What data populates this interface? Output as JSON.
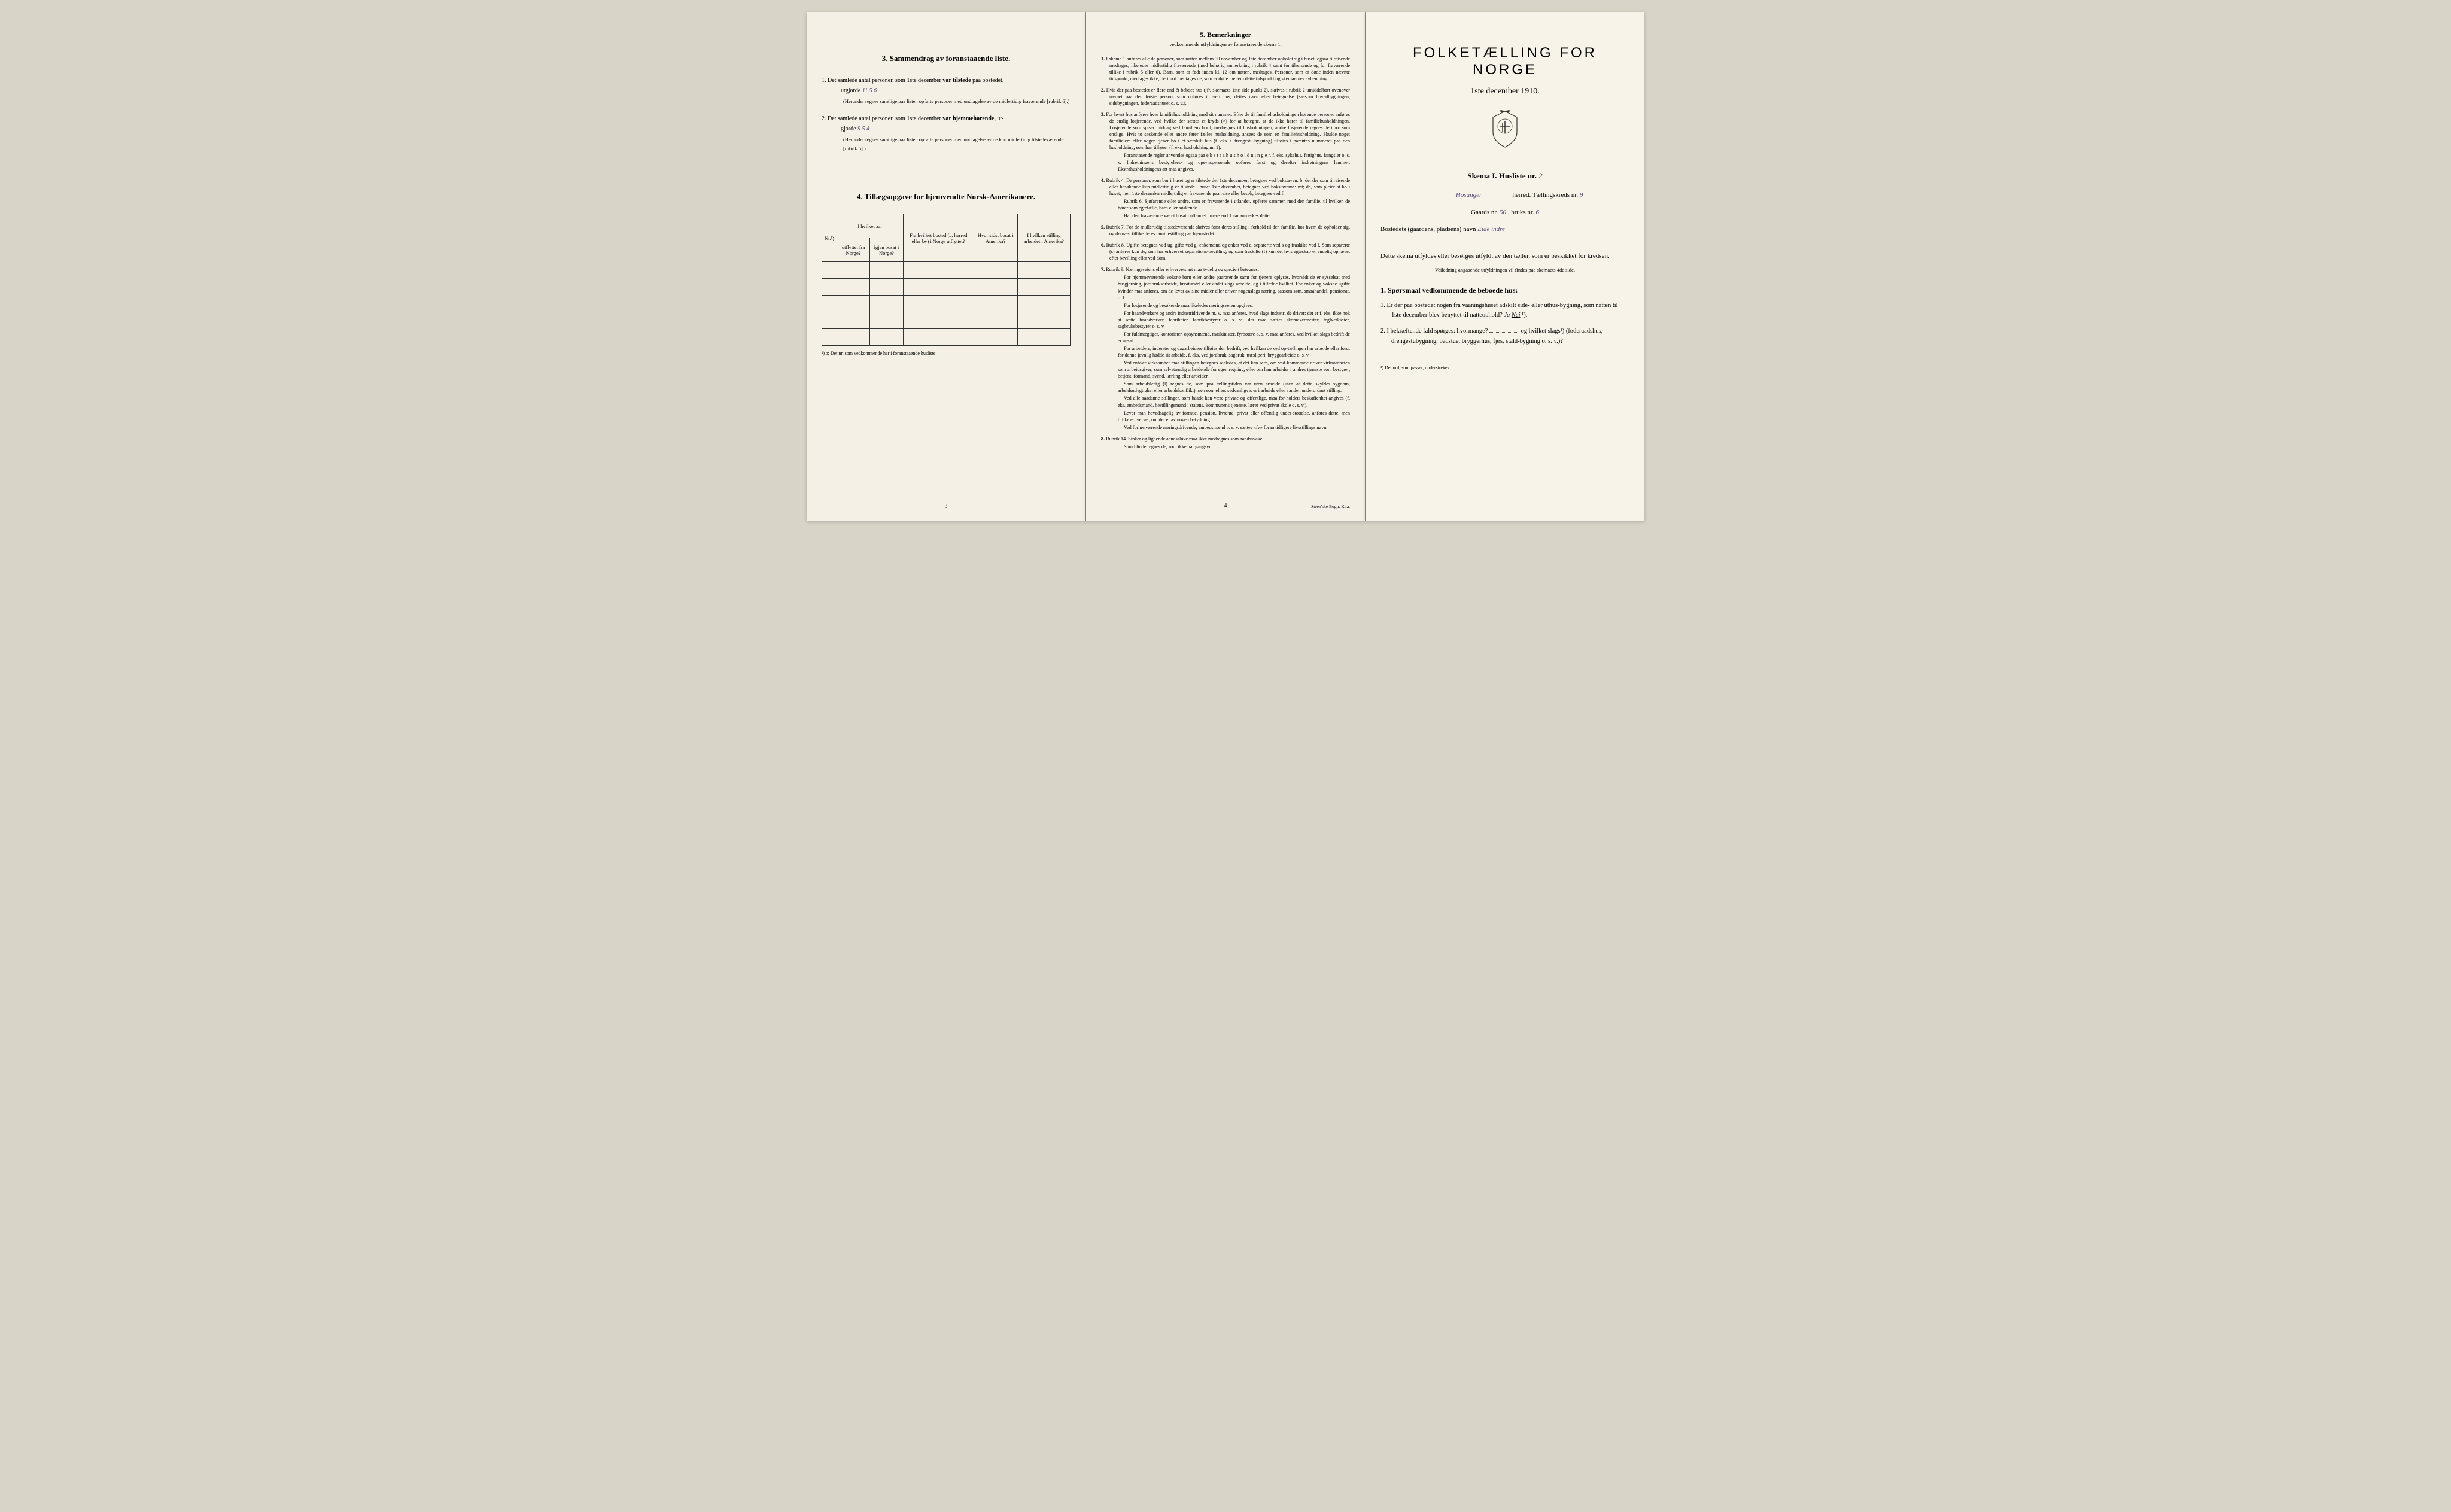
{
  "page_left": {
    "section3": {
      "title": "3.   Sammendrag av foranstaaende liste.",
      "item1_a": "1.  Det samlede antal personer, som 1ste december",
      "item1_b": "var tilstede",
      "item1_c": "paa bostedet,",
      "item1_utgjorde": "utgjorde",
      "item1_hand": "11   5  6",
      "item1_note": "(Herunder regnes samtlige paa listen opførte personer med undtagelse av de midlertidig fraværende [rubrik 6].)",
      "item2_a": "2.  Det samlede antal personer, som 1ste december",
      "item2_b": "var hjemmehørende,",
      "item2_c": "ut-",
      "item2_gjorde": "gjorde",
      "item2_hand": "9    5   4",
      "item2_note": "(Herunder regnes samtlige paa listen opførte personer med undtagelse av de kun midlertidig tilstedeværende [rubrik 5].)"
    },
    "section4": {
      "title": "4.   Tillægsopgave for hjemvendte Norsk-Amerikanere.",
      "col_nr": "Nr.¹)",
      "col_aar_head": "I hvilket aar",
      "col_utflyttet": "utflyttet fra Norge?",
      "col_igjen": "igjen bosat i Norge?",
      "col_bosted": "Fra hvilket bosted (ɔ: herred eller by) i Norge utflyttet?",
      "col_amerika": "Hvor sidst bosat i Amerika?",
      "col_stilling": "I hvilken stilling arbeidet i Amerika?",
      "footnote": "¹) ɔ: Det nr. som vedkommende har i foranstaaende husliste."
    },
    "page_num": "3"
  },
  "page_middle": {
    "title": "5.   Bemerkninger",
    "subtitle": "vedkommende utfyldningen av foranstaaende skema 1.",
    "remarks": [
      {
        "n": "1.",
        "text": "I skema 1 anføres alle de personer, som natten mellem 30 november og 1ste december opholdt sig i huset; ogsaa tilreisende medtages; likeledes midlertidig fraværende (med behørig anmerkning i rubrik 4 samt for tilreisende og for fraværende tillike i rubrik 5 eller 6). Barn, som er født inden kl. 12 om natten, medtages. Personer, som er døde inden nævnte tidspunkt, medtages ikke; derimot medtages de, som er døde mellem dette tidspunkt og skemaernes avhentning."
      },
      {
        "n": "2.",
        "text": "Hvis der paa bostedet er flere end ét beboet hus (jfr. skemaets 1ste side punkt 2), skrives i rubrik 2 umiddelbart ovenover navnet paa den første person, som opføres i hvert hus, dettes navn eller betegnelse (saasom hovedbygningen, sidebygningen, føderaadshuset o. s. v.)."
      },
      {
        "n": "3.",
        "text": "For hvert hus anføres hver familiehusholdning med sit nummer. Efter de til familiehusholdningen hørende personer anføres de enslig losjerende, ved hvilke der sættes et kryds (×) for at betegne, at de ikke hører til familiehusholdningen. Losjerende som spiser middag ved familiens bord, medregnes til husholdningen; andre losjerende regnes derimot som enslige. Hvis to søskende eller andre fører fælles husholdning, ansees de som en familiehusholdning. Skulde noget familielem eller nogen tjener bo i et særskilt hus (f. eks. i drengestu-bygning) tilføies i parentes nummeret paa den husholdning, som han tilhører (f. eks. husholdning nr. 1).",
        "paras": [
          "Foranstaaende regler anvendes ogsaa paa e k s t r a h u s h o l d n i n g e r, f. eks. sykehus, fattighus, fængsler o. s. v. Indretningens bestyrelses- og opsynspersonale opføres først og derefter indretningens lemmer. Ekstrahusholdningens art maa angives."
        ]
      },
      {
        "n": "4.",
        "text": "Rubrik 4. De personer, som bor i huset og er tilstede der 1ste december, betegnes ved bokstaven: b; de, der som tilreisende eller besøkende kun midlertidig er tilstede i huset 1ste december, betegnes ved bokstaverne: mt; de, som pleier at bo i huset, men 1ste december midlertidig er fraværende paa reise eller besøk, betegnes ved f.",
        "paras": [
          "Rubrik 6. Sjøfarende eller andre, som er fraværende i utlandet, opføres sammen med den familie, til hvilken de hører som egtefælle, barn eller søskende.",
          "Har den fraværende været bosat i utlandet i mere end 1 aar anmerkes dette."
        ]
      },
      {
        "n": "5.",
        "text": "Rubrik 7. For de midlertidig tilstedeværende skrives først deres stilling i forhold til den familie, hos hvem de opholder sig, og dernæst tillike deres familiestilling paa hjemstedet."
      },
      {
        "n": "6.",
        "text": "Rubrik 8. Ugifte betegnes ved ug, gifte ved g, enkemænd og enker ved e, separerte ved s og fraskilte ved f. Som separerte (s) anføres kun de, som har erhvervet separations-bevilling, og som fraskilte (f) kun de, hvis egteskap er endelig ophævet efter bevilling eller ved dom."
      },
      {
        "n": "7.",
        "text": "Rubrik 9. Næringsveiens eller erhvervets art maa tydelig og specielt betegnes.",
        "paras": [
          "For hjemmeværende voksne barn eller andre paarørende samt for tjenere oplyses, hvorvidt de er sysselsat med husgjerning, jordbruksarbeide, kreaturstel eller andet slags arbeide, og i tilfælde hvilket. For enker og voksne ugifte kvinder maa anføres, om de lever av sine midler eller driver nogenslags næring, saasom søm, smaahandel, pensionat, o. l.",
          "For losjerende og besøkende maa likeledes næringsveien opgives.",
          "For haandverkere og andre industridrivende m. v. maa anføres, hvad slags industri de driver; det er f. eks. ikke nok at sætte haandverker, fabrikeier, fabrikbestyrer o. s. v.; der maa sættes skomakermester, teglverkseier, sagbruksbestyrer o. s. v.",
          "For fuldmægtiger, kontorister, opsynsmænd, maskinister, fyrbøtere o. s. v. maa anføres, ved hvilket slags bedrift de er ansat.",
          "For arbeidere, inderster og dagarbeidere tilføies den bedrift, ved hvilken de ved op-tællingen har arbeide eller forut for denne jevnlig hadde sit arbeide, f. eks. ved jordbruk, sagbruk, træsliperi, bryggearbeide o. s. v.",
          "Ved enhver virksomhet maa stillingen betegnes saaledes, at det kan sees, om ved-kommende driver virksomheten som arbeidsgiver, som selvstændig arbeidende for egen regning, eller om han arbeider i andres tjeneste som bestyrer, betjent, formand, svend, lærling eller arbeider.",
          "Som arbeidsledig (l) regnes de, som paa tællingstiden var uten arbeide (uten at dette skyldes sygdom, arbeidsudygtighet eller arbeidskonflikt) men som ellers sedvanligvis er i arbeide eller i anden underordnet stilling.",
          "Ved alle saadanne stillinger, som baade kan være private og offentlige, maa for-holdets beskaffenhet angives (f. eks. embedsmand, bestillingsmand i statens, kommunens tjeneste, lærer ved privat skole o. s. v.).",
          "Lever man hovedsagelig av formue, pension, livrente, privat eller offentlig under-støttelse, anføres dette, men tillike erhvervet, om det er av nogen betydning.",
          "Ved forhenværende næringsdrivende, embedsmænd o. s. v. sættes «fv» foran tidligere livsstillings navn."
        ]
      },
      {
        "n": "8.",
        "text": "Rubrik 14. Sinker og lignende aandssløve maa ikke medregnes som aandssvake.",
        "paras": [
          "Som blinde regnes de, som ikke har gangsyn."
        ]
      }
    ],
    "page_num": "4",
    "printer": "Steen'ske Bogtr. Kr.a."
  },
  "page_right": {
    "title": "FOLKETÆLLING FOR NORGE",
    "subtitle": "1ste december 1910.",
    "skema_a": "Skema I.   Husliste nr.",
    "skema_nr": "2",
    "herred_name": "Hosanger",
    "herred_label": "herred.   Tællingskreds nr.",
    "kreds_nr": "9",
    "gaards_label": "Gaards nr.",
    "gaards_nr": "50",
    "bruks_label": ", bruks nr.",
    "bruks_nr": "6",
    "bosted_label": "Bostedets (gaardens, pladsens) navn",
    "bosted_name": "Eide indre",
    "filled_by": "Dette skema utfyldes eller besørges utfyldt av den tæller, som er beskikket for kredsen.",
    "veiledning": "Veiledning angaaende utfyldningen vil findes paa skemaets 4de side.",
    "q_head": "1.  Spørsmaal vedkommende de beboede hus:",
    "q1": "1.  Er der paa bostedet nogen fra vaaningshuset adskilt side- eller uthus-bygning, som natten til 1ste december blev benyttet til natteophold?    Ja    Nei ¹).",
    "q2_a": "2.  I bekræftende fald spørges: hvormange?",
    "q2_b": "og hvilket slags¹) (føderaadshus, drengestubygning, badstue, bryggerhus, fjøs, stald-bygning o. s. v.)?",
    "footnote": "¹) Det ord, som passer, understrekes."
  }
}
